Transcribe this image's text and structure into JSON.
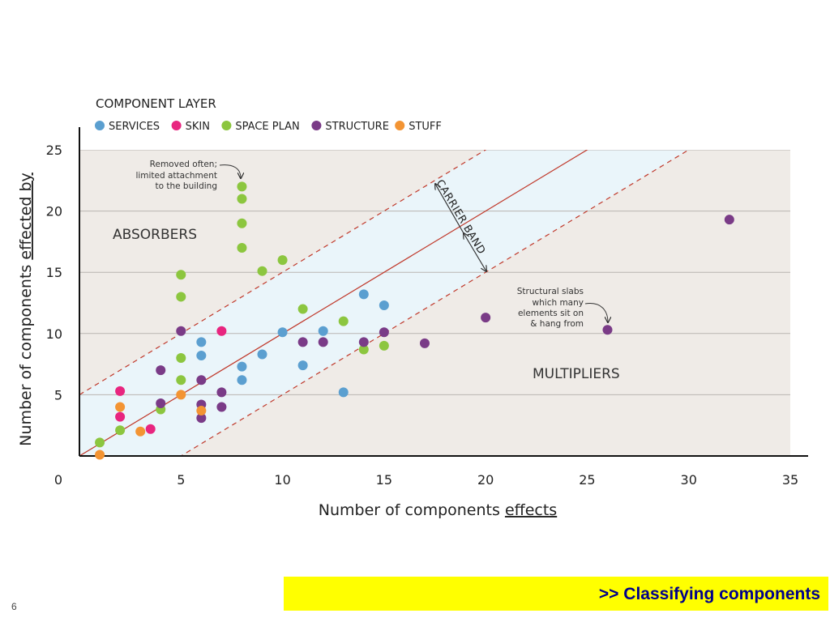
{
  "chart_data": {
    "type": "scatter",
    "title": "COMPONENT LAYER",
    "xlabel": {
      "pre": "Number of components ",
      "emph": "effects"
    },
    "ylabel": {
      "pre": "Number of components ",
      "emph": "effected by"
    },
    "xlim": [
      0,
      35
    ],
    "ylim": [
      0,
      25
    ],
    "x_ticks": [
      "0",
      "5",
      "10",
      "15",
      "20",
      "25",
      "30",
      "35"
    ],
    "y_ticks": [
      "5",
      "10",
      "15",
      "20",
      "25"
    ],
    "grid": "horizontal",
    "legend_position": "top-left",
    "regions": {
      "upper": "ABSORBERS",
      "lower": "MULTIPLIERS",
      "band": "CARRIER BAND"
    },
    "annotations": [
      {
        "lines": [
          "Removed often;",
          "limited attachment",
          "to the building"
        ]
      },
      {
        "lines": [
          "Structural slabs",
          "which many",
          "elements sit on",
          "& hang from"
        ]
      }
    ],
    "series": [
      {
        "name": "SERVICES",
        "color": "#5b9fd0",
        "points": [
          [
            6,
            9.3
          ],
          [
            6,
            8.2
          ],
          [
            8,
            7.3
          ],
          [
            8,
            6.2
          ],
          [
            9,
            8.3
          ],
          [
            10,
            10.1
          ],
          [
            11,
            7.4
          ],
          [
            12,
            10.2
          ],
          [
            13,
            5.2
          ],
          [
            14,
            13.2
          ],
          [
            15,
            12.3
          ]
        ]
      },
      {
        "name": "SKIN",
        "color": "#e8257f",
        "points": [
          [
            2,
            5.3
          ],
          [
            2,
            3.2
          ],
          [
            3.5,
            2.2
          ],
          [
            7,
            10.2
          ]
        ]
      },
      {
        "name": "SPACE PLAN",
        "color": "#8cc63f",
        "points": [
          [
            1,
            1.1
          ],
          [
            2,
            2.1
          ],
          [
            4,
            3.8
          ],
          [
            5,
            14.8
          ],
          [
            5,
            13
          ],
          [
            5,
            8
          ],
          [
            5,
            6.2
          ],
          [
            8,
            22
          ],
          [
            8,
            21
          ],
          [
            8,
            19
          ],
          [
            8,
            17
          ],
          [
            9,
            15.1
          ],
          [
            10,
            16
          ],
          [
            11,
            12
          ],
          [
            13,
            11
          ],
          [
            14,
            8.7
          ],
          [
            15,
            9
          ]
        ]
      },
      {
        "name": "STRUCTURE",
        "color": "#7a3b87",
        "points": [
          [
            4,
            7
          ],
          [
            4,
            4.3
          ],
          [
            5,
            10.2
          ],
          [
            6,
            6.2
          ],
          [
            6,
            4.2
          ],
          [
            6,
            3.1
          ],
          [
            7,
            5.2
          ],
          [
            7,
            4
          ],
          [
            11,
            9.3
          ],
          [
            12,
            9.3
          ],
          [
            14,
            9.3
          ],
          [
            15,
            10.1
          ],
          [
            17,
            9.2
          ],
          [
            20,
            11.3
          ],
          [
            26,
            10.3
          ],
          [
            32,
            19.3
          ]
        ]
      },
      {
        "name": "STUFF",
        "color": "#f39433",
        "points": [
          [
            1,
            0.1
          ],
          [
            2,
            4
          ],
          [
            3,
            2
          ],
          [
            5,
            5
          ],
          [
            6,
            3.7
          ]
        ]
      }
    ]
  },
  "footer": {
    "banner": ">> Classifying components",
    "page_number": "6"
  }
}
